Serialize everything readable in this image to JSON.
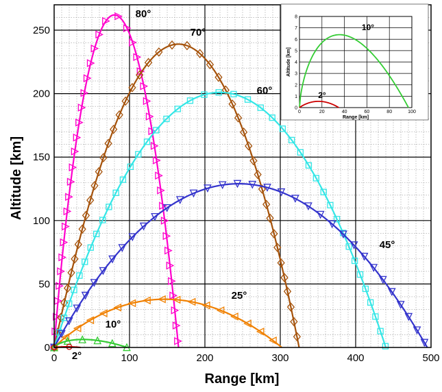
{
  "chart_data": [
    {
      "type": "line",
      "title": "",
      "xlabel": "Range [km]",
      "ylabel": "Altitude [km]",
      "xlim": [
        0,
        500
      ],
      "ylim": [
        0,
        270
      ],
      "x_ticks": [
        0,
        100,
        200,
        300,
        400,
        500
      ],
      "y_ticks": [
        0,
        50,
        100,
        150,
        200,
        250
      ],
      "grid": "major solid, minor dotted",
      "series": [
        {
          "name": "80°",
          "color": "#ff00cc",
          "marker": "triangle-right",
          "range": 165,
          "apex": [
            85,
            262
          ]
        },
        {
          "name": "70°",
          "color": "#a5520a",
          "marker": "diamond",
          "range": 325,
          "apex": [
            160,
            239
          ]
        },
        {
          "name": "60°",
          "color": "#33e6e6",
          "marker": "square",
          "range": 440,
          "apex": [
            220,
            201
          ]
        },
        {
          "name": "45°",
          "color": "#3333cc",
          "marker": "triangle-down",
          "range": 495,
          "apex": [
            250,
            129
          ]
        },
        {
          "name": "25°",
          "color": "#f08000",
          "marker": "triangle-left",
          "range": 302,
          "apex": [
            155,
            38
          ]
        },
        {
          "name": "10°",
          "color": "#33cc33",
          "marker": "triangle-up",
          "range": 97,
          "apex": [
            58,
            6.3
          ]
        },
        {
          "name": "2°",
          "color": "#cc0000",
          "marker": "circle",
          "range": 35,
          "apex": [
            18,
            0.5
          ]
        }
      ]
    },
    {
      "type": "line",
      "title": "",
      "xlabel": "Range [km]",
      "ylabel": "Altitude [km]",
      "xlim": [
        0,
        100
      ],
      "ylim": [
        0,
        8
      ],
      "x_ticks": [
        0,
        20,
        40,
        60,
        80,
        100
      ],
      "y_ticks": [
        0,
        1,
        2,
        3,
        4,
        5,
        6,
        7,
        8
      ],
      "grid": "major solid",
      "series": [
        {
          "name": "10°",
          "color": "#33cc33",
          "range": 97,
          "apex": [
            60,
            6.4
          ]
        },
        {
          "name": "2°",
          "color": "#cc0000",
          "range": 35,
          "apex": [
            18,
            0.55
          ]
        }
      ]
    }
  ]
}
